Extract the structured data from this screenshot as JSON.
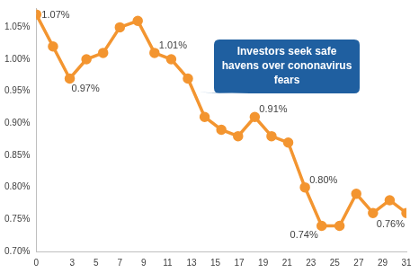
{
  "chart_data": {
    "type": "line",
    "x": [
      0,
      1.4,
      2.8,
      4.2,
      5.6,
      7,
      8.5,
      9.9,
      11.3,
      12.7,
      14.1,
      15.5,
      16.9,
      18.3,
      19.7,
      21.1,
      22.5,
      23.9,
      25.4,
      26.8,
      28.2,
      29.6,
      31
    ],
    "values": [
      1.07,
      1.02,
      0.97,
      1.0,
      1.01,
      1.05,
      1.06,
      1.01,
      1.0,
      0.97,
      0.91,
      0.89,
      0.88,
      0.91,
      0.88,
      0.87,
      0.8,
      0.74,
      0.74,
      0.79,
      0.76,
      0.78,
      0.76
    ],
    "color": "#f39530",
    "marker": "circle",
    "xlim": [
      0,
      31
    ],
    "xticks": [
      0,
      3,
      5,
      7,
      9,
      11,
      13,
      15,
      17,
      19,
      21,
      23,
      25,
      27,
      29,
      31
    ],
    "ylim": [
      0.7,
      1.08
    ],
    "yticks": [
      {
        "value": 0.7,
        "label": "0.70%"
      },
      {
        "value": 0.75,
        "label": "0.75%"
      },
      {
        "value": 0.8,
        "label": "0.80%"
      },
      {
        "value": 0.85,
        "label": "0.85%"
      },
      {
        "value": 0.9,
        "label": "0.90%"
      },
      {
        "value": 0.95,
        "label": "0.95%"
      },
      {
        "value": 1.0,
        "label": "1.00%"
      },
      {
        "value": 1.05,
        "label": "1.05%"
      }
    ],
    "grid": false,
    "annotations": [
      {
        "x": 0,
        "y": 1.07,
        "label": "1.07%"
      },
      {
        "x": 2.8,
        "y": 0.97,
        "label": "0.97%"
      },
      {
        "x": 9.9,
        "y": 1.01,
        "label": "1.01%"
      },
      {
        "x": 18.3,
        "y": 0.91,
        "label": "0.91%"
      },
      {
        "x": 22.5,
        "y": 0.8,
        "label": "0.80%"
      },
      {
        "x": 23.9,
        "y": 0.74,
        "label": "0.74%"
      },
      {
        "x": 31,
        "y": 0.76,
        "label": "0.76%"
      }
    ],
    "callout": "Investors seek safe havens over cononavirus fears"
  }
}
